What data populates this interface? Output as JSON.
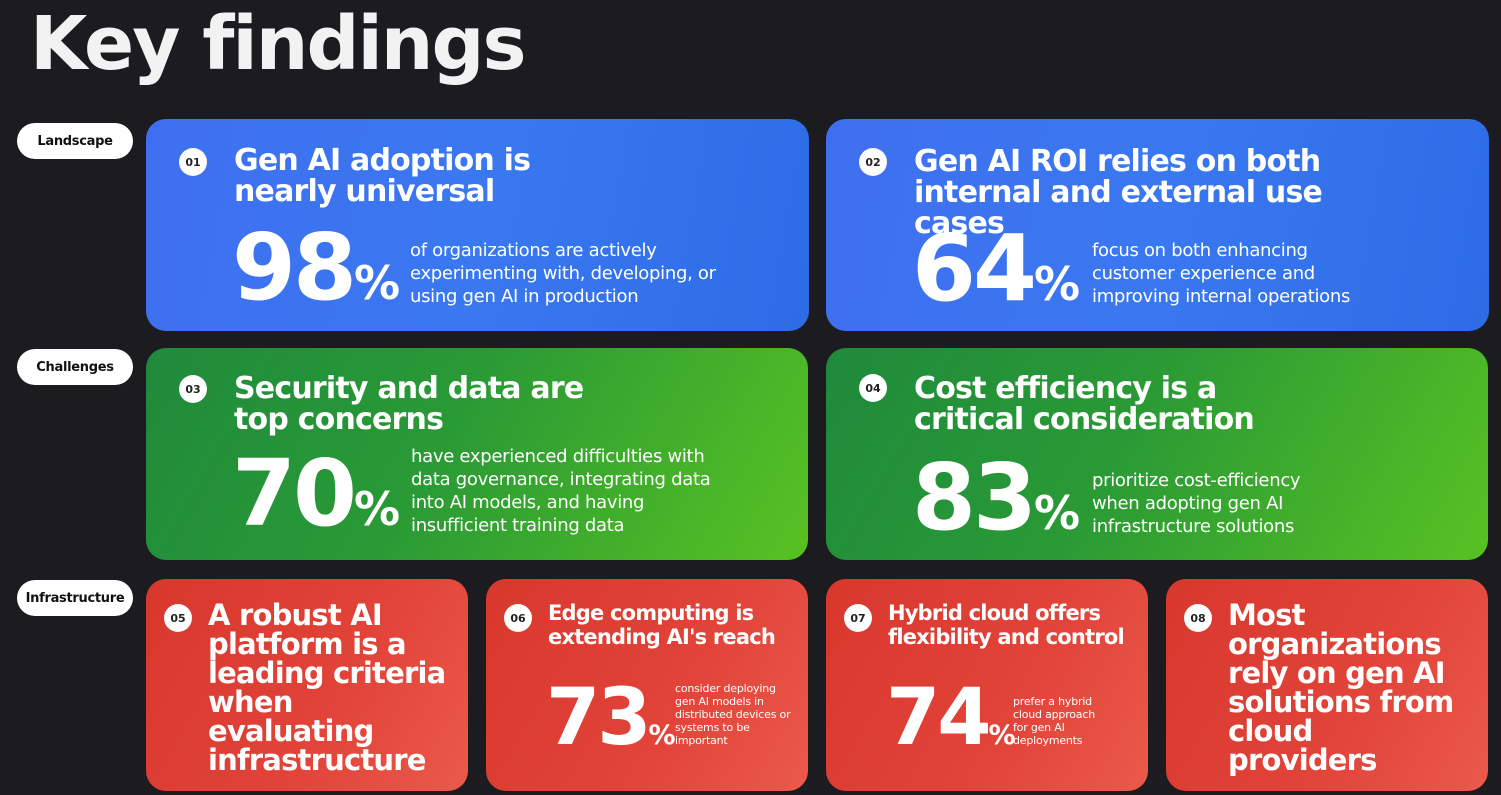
{
  "title": "Key findings",
  "pills": {
    "landscape": "Landscape",
    "challenges": "Challenges",
    "infrastructure": "Infrastructure"
  },
  "cards": [
    {
      "num": "01",
      "heading": "Gen AI adoption is nearly universal",
      "value": "98",
      "unit": "%",
      "desc": "of organizations are actively experimenting with, developing, or using gen AI in production"
    },
    {
      "num": "02",
      "heading": "Gen AI ROI relies on both internal and external use cases",
      "value": "64",
      "unit": "%",
      "desc": "focus on both enhancing customer experience and improving internal operations"
    },
    {
      "num": "03",
      "heading": "Security and data are top concerns",
      "value": "70",
      "unit": "%",
      "desc": "have experienced difficulties with data governance, integrating data into AI models, and having insufficient training data"
    },
    {
      "num": "04",
      "heading": "Cost efficiency is a critical consideration",
      "value": "83",
      "unit": "%",
      "desc": "prioritize cost-efficiency when adopting gen AI infrastructure solutions"
    },
    {
      "num": "05",
      "heading": "A robust AI platform is a leading criteria when evaluating infrastructure"
    },
    {
      "num": "06",
      "heading": "Edge computing is extending AI's reach",
      "value": "73",
      "unit": "%",
      "desc": "consider deploying gen AI models in distributed devices or systems to be important"
    },
    {
      "num": "07",
      "heading": "Hybrid cloud offers flexibility and control",
      "value": "74",
      "unit": "%",
      "desc": "prefer a hybrid cloud approach for gen AI deployments"
    },
    {
      "num": "08",
      "heading": "Most organizations rely on gen AI solutions from cloud providers"
    }
  ],
  "colors": {
    "background": "#1c1b1f",
    "landscape": "#3a78f0",
    "challenges": "#2a9a35",
    "infrastructure": "#e2443a"
  }
}
